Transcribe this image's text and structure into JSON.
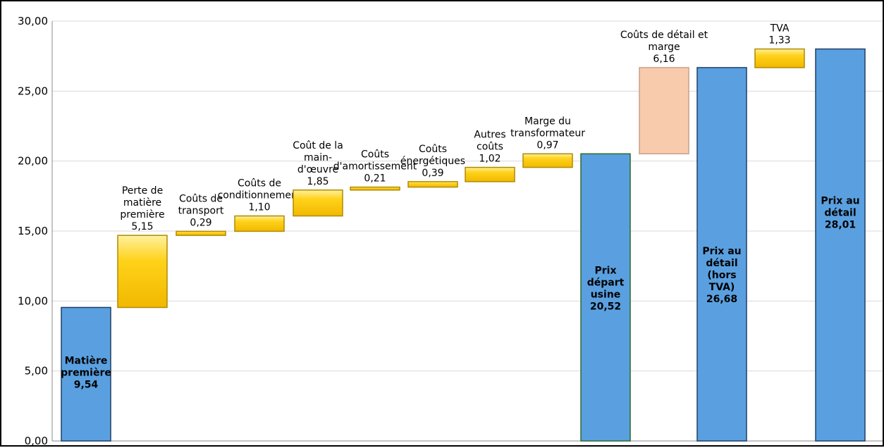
{
  "chart_data": {
    "type": "bar",
    "subtype": "waterfall",
    "title": "",
    "xlabel": "",
    "ylabel": "",
    "ylim": [
      0,
      30
    ],
    "yticks": [
      "0,00",
      "5,00",
      "10,00",
      "15,00",
      "20,00",
      "25,00",
      "30,00"
    ],
    "grid": "horizontal",
    "legend": "none",
    "colors": {
      "total": "#5aa0e0",
      "step": "#ffc800",
      "retail_step": "#f8cbad",
      "grid": "#d9d9d9"
    },
    "bars": [
      {
        "kind": "total",
        "base": 0,
        "value": 9.54,
        "label": [
          "Matière",
          "première",
          "9,54"
        ]
      },
      {
        "kind": "step",
        "base": 9.54,
        "value": 5.15,
        "label": [
          "Perte de",
          "matière",
          "première",
          "5,15"
        ]
      },
      {
        "kind": "step",
        "base": 14.69,
        "value": 0.29,
        "label": [
          "Coûts de",
          "transport",
          "0,29"
        ]
      },
      {
        "kind": "step",
        "base": 14.98,
        "value": 1.1,
        "label": [
          "Coûts de",
          "conditionnement",
          "1,10"
        ]
      },
      {
        "kind": "step",
        "base": 16.08,
        "value": 1.85,
        "label": [
          "Coût de la",
          "main-",
          "d'œuvre",
          "1,85"
        ]
      },
      {
        "kind": "step",
        "base": 17.93,
        "value": 0.21,
        "label": [
          "Coûts",
          "d'amortissement",
          "0,21"
        ]
      },
      {
        "kind": "step",
        "base": 18.14,
        "value": 0.39,
        "label": [
          "Coûts",
          "énergétiques",
          "0,39"
        ]
      },
      {
        "kind": "step",
        "base": 18.53,
        "value": 1.02,
        "label": [
          "Autres",
          "coûts",
          "1,02"
        ]
      },
      {
        "kind": "step",
        "base": 19.55,
        "value": 0.97,
        "label": [
          "Marge du",
          "transformateur",
          "0,97"
        ]
      },
      {
        "kind": "total",
        "base": 0,
        "value": 20.52,
        "label": [
          "Prix",
          "départ",
          "usine",
          "20,52"
        ]
      },
      {
        "kind": "retail_step",
        "base": 20.52,
        "value": 6.16,
        "label": [
          "Coûts de détail et",
          "marge",
          "6,16"
        ]
      },
      {
        "kind": "total",
        "base": 0,
        "value": 26.68,
        "label": [
          "Prix au",
          "détail",
          "(hors",
          "TVA)",
          "26,68"
        ]
      },
      {
        "kind": "step",
        "base": 26.68,
        "value": 1.33,
        "label": [
          "TVA",
          "1,33"
        ]
      },
      {
        "kind": "total",
        "base": 0,
        "value": 28.01,
        "label": [
          "Prix au",
          "détail",
          "28,01"
        ]
      }
    ]
  }
}
